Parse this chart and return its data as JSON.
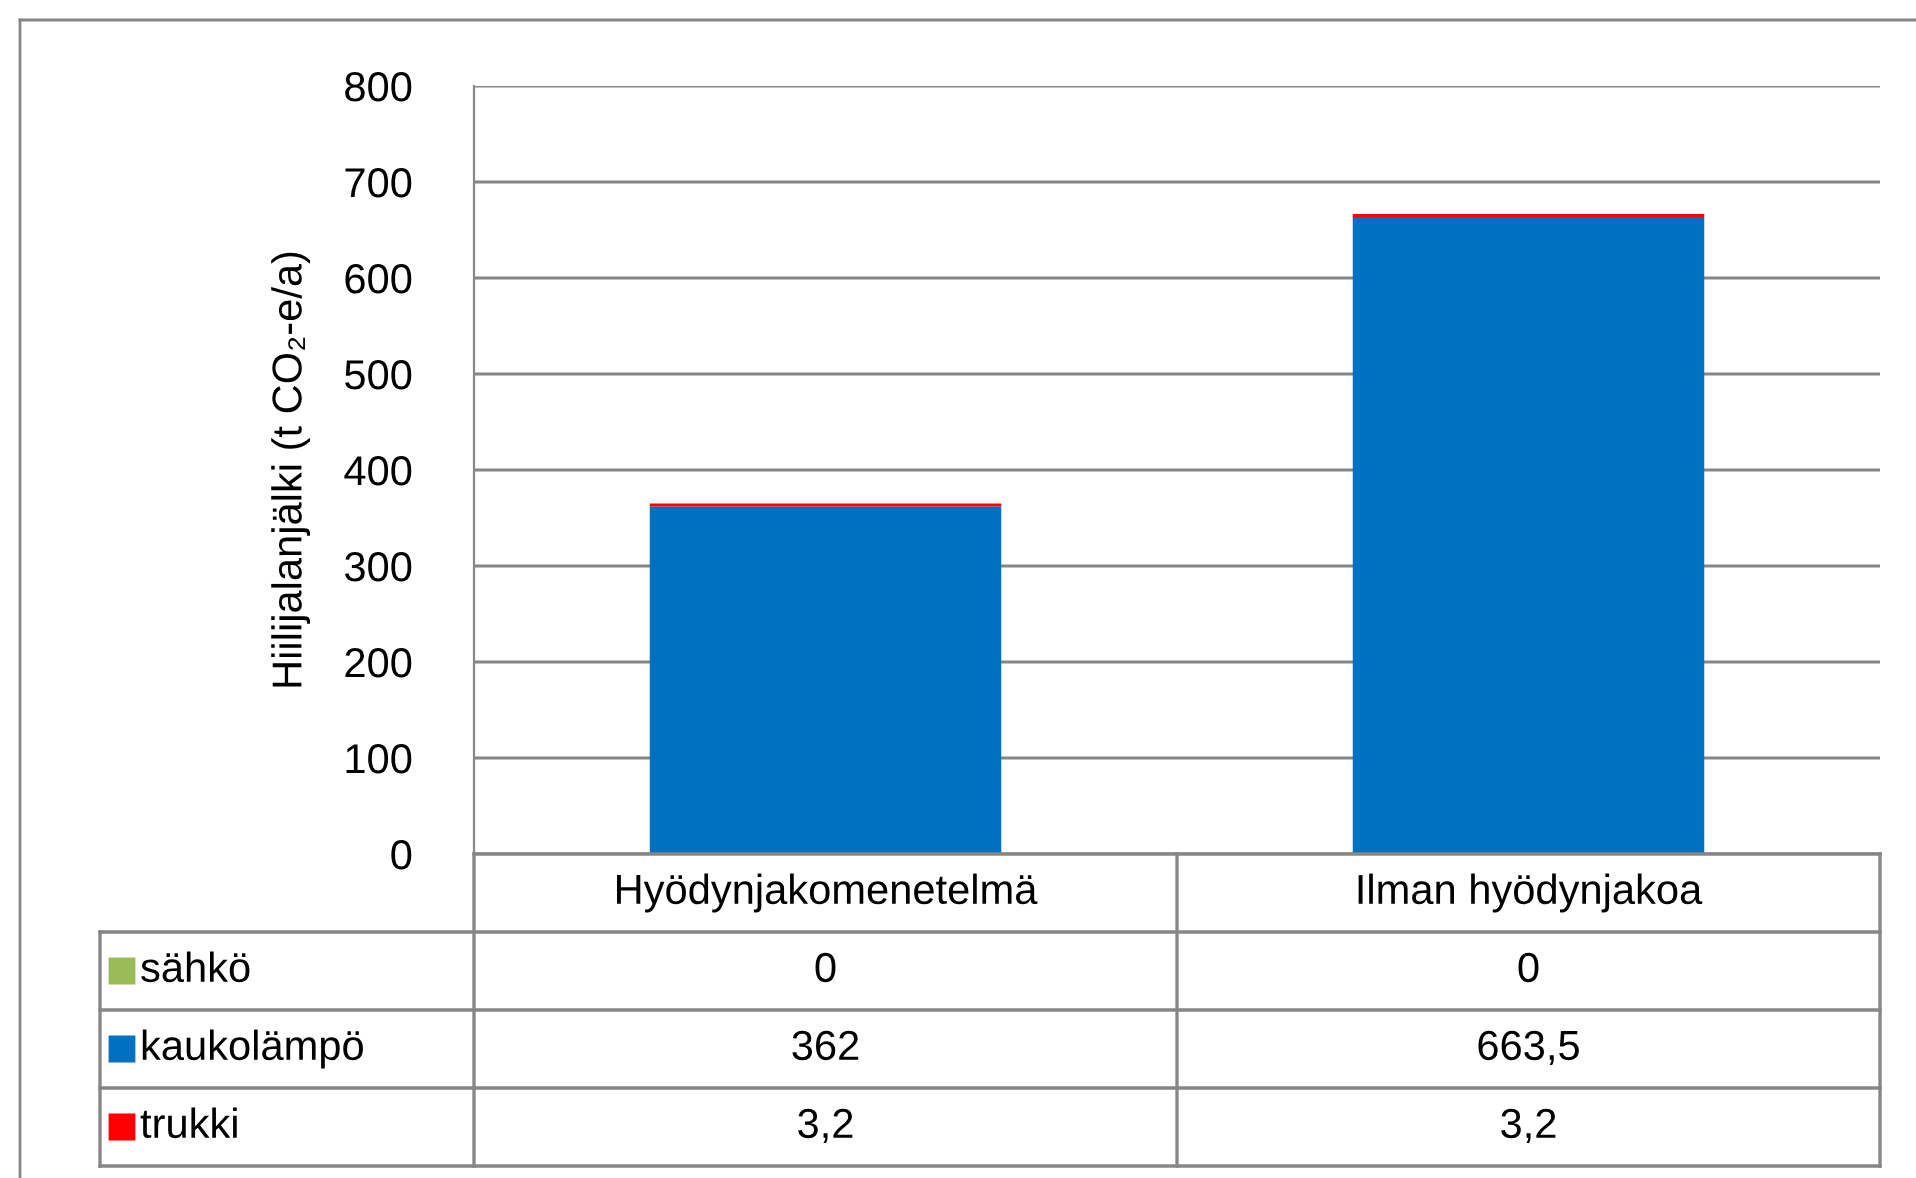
{
  "chart_data": {
    "type": "bar",
    "stacked": true,
    "ylabel": "Hiilijalanjälki (t CO₂-e/a)",
    "categories": [
      "Hyödynjakomenetelmä",
      "Ilman hyödynjakoa"
    ],
    "series": [
      {
        "name": "sähkö",
        "color": "#9bbb59",
        "values": [
          0,
          0
        ],
        "value_labels": [
          "0",
          "0"
        ]
      },
      {
        "name": "kaukolämpö",
        "color": "#0070c0",
        "values": [
          362,
          663.5
        ],
        "value_labels": [
          "362",
          "663,5"
        ]
      },
      {
        "name": "trukki",
        "color": "#ff0000",
        "values": [
          3.2,
          3.2
        ],
        "value_labels": [
          "3,2",
          "3,2"
        ]
      }
    ],
    "ylim": [
      0,
      800
    ],
    "yticks": [
      0,
      100,
      200,
      300,
      400,
      500,
      600,
      700,
      800
    ],
    "grid": "y",
    "legend": "bottom"
  }
}
